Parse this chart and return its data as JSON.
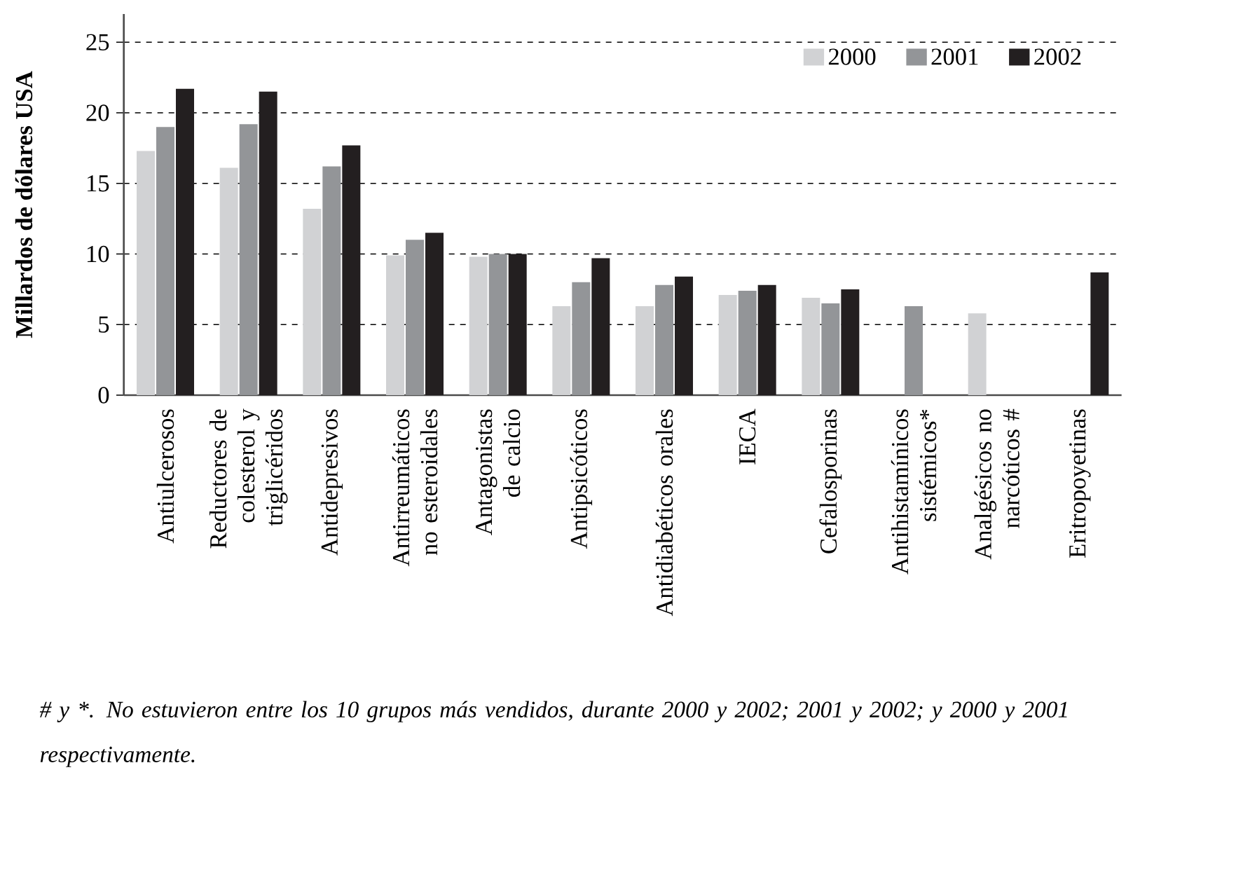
{
  "chart_data": {
    "type": "bar",
    "ylabel": "Millardos de dólares USA",
    "categories": [
      "Antiulcerosos",
      "Reductores de colesterol y triglicéridos",
      "Antidepresivos",
      "Antirreumáticos no esteroidales",
      "Antagonistas de calcio",
      "Antipsicóticos",
      "Antidiabéticos orales",
      "IECA",
      "Cefalosporinas",
      "Antihistamínicos sistémicos*",
      "Analgésicos no narcóticos #",
      "Eritropoyetinas"
    ],
    "series": [
      {
        "name": "2000",
        "color": "#d1d2d4",
        "values": [
          17.3,
          16.1,
          13.2,
          9.9,
          9.8,
          6.3,
          6.3,
          7.1,
          6.9,
          null,
          5.8,
          null
        ]
      },
      {
        "name": "2001",
        "color": "#939598",
        "values": [
          19.0,
          19.2,
          16.2,
          11.0,
          10.0,
          8.0,
          7.8,
          7.4,
          6.5,
          6.3,
          null,
          null
        ]
      },
      {
        "name": "2002",
        "color": "#231f20",
        "values": [
          21.7,
          21.5,
          17.7,
          11.5,
          10.0,
          9.7,
          8.4,
          7.8,
          7.5,
          null,
          null,
          8.7
        ]
      }
    ],
    "ylim": [
      0,
      27
    ],
    "yticks": [
      0,
      5,
      10,
      15,
      20,
      25
    ],
    "grid": "y",
    "line_style": "dashed",
    "legend": "top right",
    "annotations": [
      "# y *. No estuvieron entre los 10 grupos más vendidos, durante 2000 y 2002; 2001 y 2002; y 2000 y 2001 respectivamente."
    ]
  }
}
